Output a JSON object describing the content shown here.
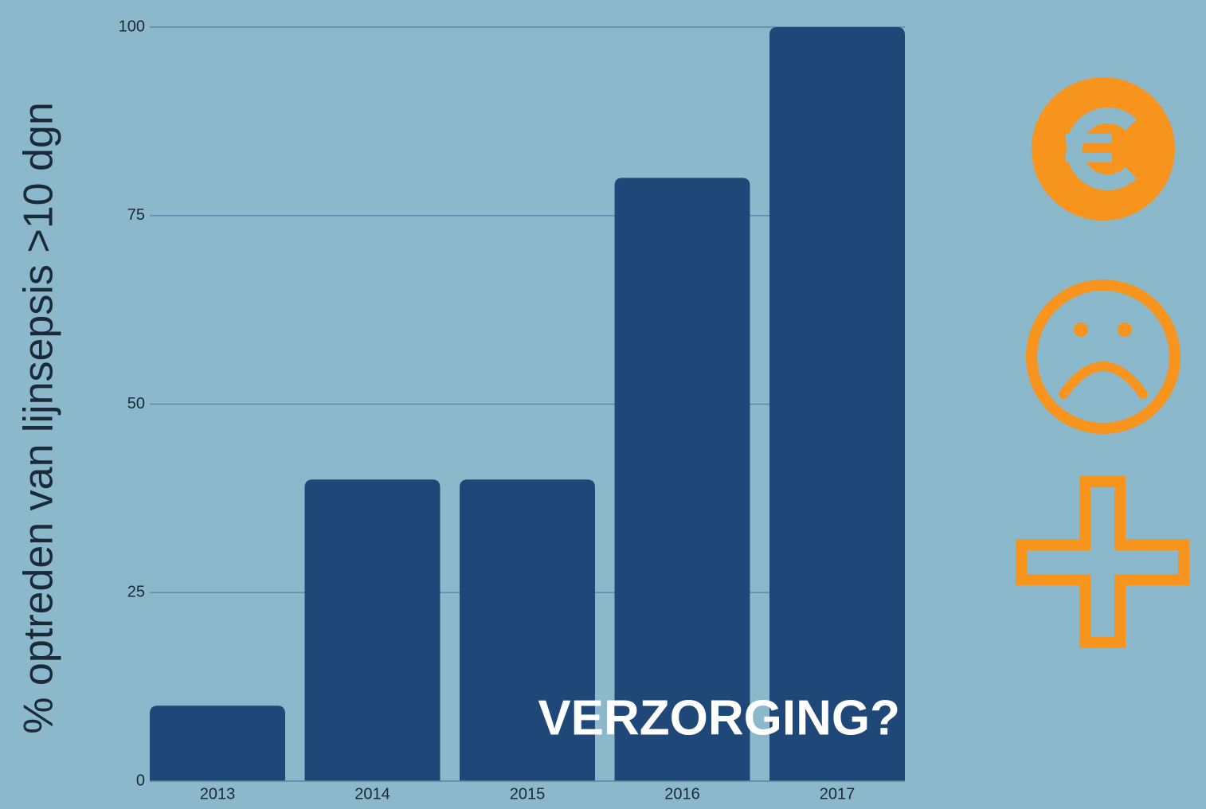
{
  "chart_data": {
    "type": "bar",
    "y_axis_label": "% optreden van lijnsepsis >10 dgn",
    "annotation": "VERZORGING?",
    "categories": [
      "2013",
      "2014",
      "2015",
      "2016",
      "2017"
    ],
    "values": [
      10,
      40,
      40,
      80,
      100
    ],
    "color": "#1f4878",
    "ylim": [
      0,
      100
    ],
    "yticks": [
      0,
      25,
      50,
      75,
      100
    ],
    "grid": true
  }
}
